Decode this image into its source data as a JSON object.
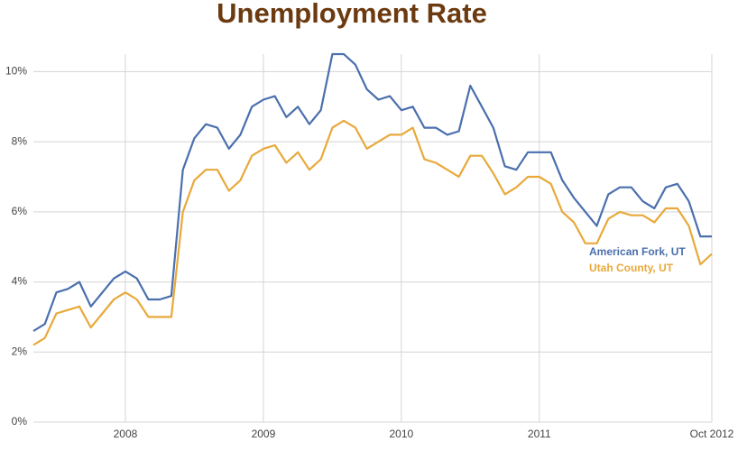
{
  "chart_data": {
    "type": "line",
    "title": "Unemployment Rate",
    "x": [
      0,
      1,
      2,
      3,
      4,
      5,
      6,
      7,
      8,
      9,
      10,
      11,
      12,
      13,
      14,
      15,
      16,
      17,
      18,
      19,
      20,
      21,
      22,
      23,
      24,
      25,
      26,
      27,
      28,
      29,
      30,
      31,
      32,
      33,
      34,
      35,
      36,
      37,
      38,
      39,
      40,
      41,
      42,
      43,
      44,
      45,
      46,
      47,
      48,
      49,
      50,
      51,
      52,
      53,
      54,
      55,
      56,
      57,
      58,
      59
    ],
    "xlim": [
      0,
      59
    ],
    "xticks": [
      {
        "value": 8,
        "label": "2008"
      },
      {
        "value": 20,
        "label": "2009"
      },
      {
        "value": 32,
        "label": "2010"
      },
      {
        "value": 44,
        "label": "2011"
      },
      {
        "value": 59,
        "label": "Oct 2012"
      }
    ],
    "ylim": [
      0,
      10.5
    ],
    "yticks": [
      {
        "value": 0,
        "label": "0%"
      },
      {
        "value": 2,
        "label": "2%"
      },
      {
        "value": 4,
        "label": "4%"
      },
      {
        "value": 6,
        "label": "6%"
      },
      {
        "value": 8,
        "label": "8%"
      },
      {
        "value": 10,
        "label": "10%"
      }
    ],
    "grid": true,
    "legend": "right",
    "series": [
      {
        "name": "American Fork, UT",
        "color": "#4a6fad",
        "values": [
          2.6,
          2.8,
          3.7,
          3.8,
          4.0,
          3.3,
          3.7,
          4.1,
          4.3,
          4.1,
          3.5,
          3.5,
          3.6,
          7.2,
          8.1,
          8.5,
          8.4,
          7.8,
          8.2,
          9.0,
          9.2,
          9.3,
          8.7,
          9.0,
          8.5,
          8.9,
          10.5,
          10.5,
          10.2,
          9.5,
          9.2,
          9.3,
          8.9,
          9.0,
          8.4,
          8.4,
          8.2,
          8.3,
          9.6,
          9.0,
          8.4,
          7.3,
          7.2,
          7.7,
          7.7,
          7.7,
          6.9,
          6.4,
          6.0,
          5.6,
          6.5,
          6.7,
          6.7,
          6.3,
          6.1,
          6.7,
          6.8,
          6.3,
          5.3,
          5.3
        ]
      },
      {
        "name": "Utah County, UT",
        "color": "#e8a93a",
        "values": [
          2.2,
          2.4,
          3.1,
          3.2,
          3.3,
          2.7,
          3.1,
          3.5,
          3.7,
          3.5,
          3.0,
          3.0,
          3.0,
          6.0,
          6.9,
          7.2,
          7.2,
          6.6,
          6.9,
          7.6,
          7.8,
          7.9,
          7.4,
          7.7,
          7.2,
          7.5,
          8.4,
          8.6,
          8.4,
          7.8,
          8.0,
          8.2,
          8.2,
          8.4,
          7.5,
          7.4,
          7.2,
          7.0,
          7.6,
          7.6,
          7.1,
          6.5,
          6.7,
          7.0,
          7.0,
          6.8,
          6.0,
          5.7,
          5.1,
          5.1,
          5.8,
          6.0,
          5.9,
          5.9,
          5.7,
          6.1,
          6.1,
          5.6,
          4.5,
          4.8
        ]
      }
    ]
  }
}
